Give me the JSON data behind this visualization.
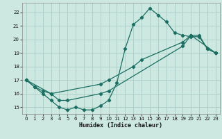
{
  "xlabel": "Humidex (Indice chaleur)",
  "bg_color": "#cce8e0",
  "grid_color": "#aaccc4",
  "line_color": "#1a6e62",
  "xlim": [
    -0.5,
    23.5
  ],
  "ylim": [
    14.5,
    22.7
  ],
  "xticks": [
    0,
    1,
    2,
    3,
    4,
    5,
    6,
    7,
    8,
    9,
    10,
    11,
    12,
    13,
    14,
    15,
    16,
    17,
    18,
    19,
    20,
    21,
    22,
    23
  ],
  "yticks": [
    15,
    16,
    17,
    18,
    19,
    20,
    21,
    22
  ],
  "curve1_x": [
    0,
    1,
    2,
    3,
    4,
    5,
    6,
    7,
    8,
    9,
    10,
    11,
    12,
    13,
    14,
    15,
    16,
    17,
    18,
    19,
    20,
    21,
    22,
    23
  ],
  "curve1_y": [
    17.0,
    16.5,
    16.0,
    15.5,
    15.0,
    14.8,
    15.0,
    14.8,
    14.8,
    15.1,
    15.5,
    16.8,
    19.3,
    21.1,
    21.6,
    22.3,
    21.8,
    21.3,
    20.5,
    20.3,
    20.2,
    20.2,
    19.3,
    19.0
  ],
  "curve2_x": [
    0,
    1,
    2,
    3,
    9,
    10,
    13,
    14,
    19,
    20,
    21,
    22,
    23
  ],
  "curve2_y": [
    17.0,
    16.5,
    16.2,
    16.0,
    16.7,
    17.0,
    18.0,
    18.5,
    19.8,
    20.3,
    20.3,
    19.3,
    19.0
  ],
  "curve3_x": [
    0,
    3,
    4,
    5,
    9,
    10,
    19,
    20,
    23
  ],
  "curve3_y": [
    17.0,
    16.0,
    15.5,
    15.5,
    16.0,
    16.2,
    19.5,
    20.3,
    19.0
  ]
}
